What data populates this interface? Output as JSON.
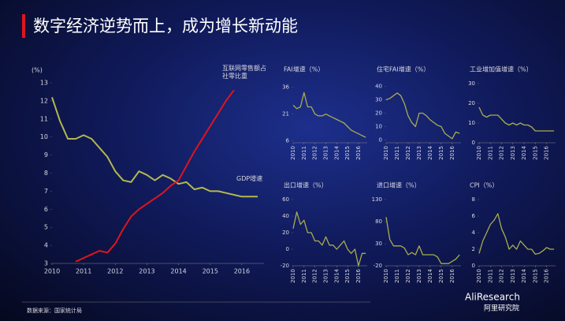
{
  "title": "数字经济逆势而上，成为增长新动能",
  "source": "数据来源：国家统计局",
  "logo": {
    "brand": "AliResearch",
    "sub": "阿里研究院"
  },
  "chart_data": [
    {
      "type": "line",
      "y_label": "(%)",
      "xlim": [
        2010,
        2016.7
      ],
      "ylim": [
        3,
        13
      ],
      "xticks": [
        2010,
        2011,
        2012,
        2013,
        2014,
        2015,
        2016
      ],
      "yticks": [
        3,
        4,
        5,
        6,
        7,
        8,
        9,
        10,
        11,
        12,
        13
      ],
      "series": [
        {
          "name": "GDP增速",
          "color": "#b3b84e",
          "x": [
            2010,
            2010.25,
            2010.5,
            2010.75,
            2011,
            2011.25,
            2011.5,
            2011.75,
            2012,
            2012.25,
            2012.5,
            2012.75,
            2013,
            2013.25,
            2013.5,
            2013.75,
            2014,
            2014.25,
            2014.5,
            2014.75,
            2015,
            2015.25,
            2015.5,
            2015.75,
            2016,
            2016.25,
            2016.5
          ],
          "values": [
            12.2,
            10.9,
            9.9,
            9.9,
            10.1,
            9.9,
            9.4,
            8.9,
            8.1,
            7.6,
            7.5,
            8.1,
            7.9,
            7.6,
            7.9,
            7.7,
            7.4,
            7.5,
            7.1,
            7.2,
            7.0,
            7.0,
            6.9,
            6.8,
            6.7,
            6.7,
            6.7
          ]
        },
        {
          "name": "互联网零售额占社零比重",
          "color": "#e0141c",
          "x": [
            2010.75,
            2011,
            2011.25,
            2011.5,
            2011.75,
            2012,
            2012.25,
            2012.5,
            2012.75,
            2013,
            2013.25,
            2013.5,
            2013.75,
            2014,
            2014.25,
            2014.5,
            2014.75,
            2015,
            2015.25,
            2015.5,
            2015.75
          ],
          "values": [
            3.1,
            3.3,
            3.5,
            3.7,
            3.6,
            4.1,
            4.9,
            5.6,
            6.0,
            6.3,
            6.6,
            6.9,
            7.3,
            7.6,
            8.4,
            9.2,
            9.9,
            10.6,
            11.3,
            12.0,
            12.6
          ]
        }
      ]
    },
    {
      "type": "line",
      "title": "FAI增速（%）",
      "xlim": [
        2010,
        2016.8
      ],
      "ylim": [
        5,
        38
      ],
      "xticks": [
        2010,
        2011,
        2012,
        2013,
        2014,
        2015,
        2016
      ],
      "yticks": [
        6,
        21,
        36
      ],
      "x": [
        2010,
        2010.33,
        2010.67,
        2011,
        2011.33,
        2011.67,
        2012,
        2012.33,
        2012.67,
        2013,
        2013.33,
        2013.67,
        2014,
        2014.33,
        2014.67,
        2015,
        2015.33,
        2015.67,
        2016,
        2016.33,
        2016.67
      ],
      "series": [
        {
          "color": "#a8ad4e",
          "values": [
            26,
            24,
            25,
            33,
            25,
            25,
            21,
            20,
            20,
            21,
            20,
            19,
            18,
            17,
            16,
            14,
            12,
            11,
            10,
            9,
            8
          ]
        }
      ]
    },
    {
      "type": "line",
      "title": "住宅FAI增速（%）",
      "xlim": [
        2010,
        2016.8
      ],
      "ylim": [
        -2,
        42
      ],
      "xticks": [
        2010,
        2011,
        2012,
        2013,
        2014,
        2015,
        2016
      ],
      "yticks": [
        0,
        10,
        20,
        30,
        40
      ],
      "x": [
        2010,
        2010.33,
        2010.67,
        2011,
        2011.33,
        2011.67,
        2012,
        2012.33,
        2012.67,
        2013,
        2013.33,
        2013.67,
        2014,
        2014.33,
        2014.67,
        2015,
        2015.33,
        2015.67,
        2016,
        2016.33,
        2016.67
      ],
      "series": [
        {
          "color": "#a8ad4e",
          "values": [
            30,
            31,
            33,
            35,
            33,
            27,
            18,
            13,
            10,
            20,
            20,
            18,
            15,
            13,
            11,
            10,
            5,
            3,
            1,
            6,
            5
          ]
        }
      ]
    },
    {
      "type": "line",
      "title": "工业增加值增速（%）",
      "xlim": [
        2010,
        2016.8
      ],
      "ylim": [
        0,
        30
      ],
      "xticks": [
        2010,
        2011,
        2012,
        2013,
        2014,
        2015,
        2016
      ],
      "yticks": [
        0,
        10,
        20,
        30
      ],
      "x": [
        2010,
        2010.33,
        2010.67,
        2011,
        2011.33,
        2011.67,
        2012,
        2012.33,
        2012.67,
        2013,
        2013.33,
        2013.67,
        2014,
        2014.33,
        2014.67,
        2015,
        2015.33,
        2015.67,
        2016,
        2016.33,
        2016.67
      ],
      "series": [
        {
          "color": "#a8ad4e",
          "values": [
            18,
            14,
            13,
            14,
            14,
            14,
            12,
            10,
            9,
            10,
            9,
            10,
            9,
            9,
            8,
            6,
            6,
            6,
            6,
            6,
            6
          ]
        }
      ]
    },
    {
      "type": "line",
      "title": "出口增速（%）",
      "xlim": [
        2010,
        2016.8
      ],
      "ylim": [
        -20,
        60
      ],
      "xticks": [
        2010,
        2011,
        2012,
        2013,
        2014,
        2015,
        2016
      ],
      "yticks": [
        -20,
        0,
        20,
        40,
        60
      ],
      "x": [
        2010,
        2010.33,
        2010.67,
        2011,
        2011.33,
        2011.67,
        2012,
        2012.33,
        2012.67,
        2013,
        2013.33,
        2013.67,
        2014,
        2014.33,
        2014.67,
        2015,
        2015.33,
        2015.67,
        2016,
        2016.33,
        2016.67
      ],
      "series": [
        {
          "color": "#a8ad4e",
          "values": [
            25,
            45,
            30,
            35,
            20,
            20,
            10,
            10,
            5,
            15,
            5,
            5,
            0,
            5,
            10,
            0,
            -5,
            0,
            -20,
            -5,
            -5
          ]
        }
      ]
    },
    {
      "type": "line",
      "title": "进口增速（%）",
      "xlim": [
        2010,
        2016.8
      ],
      "ylim": [
        -20,
        130
      ],
      "xticks": [
        2010,
        2011,
        2012,
        2013,
        2014,
        2015,
        2016
      ],
      "yticks": [
        -20,
        30,
        80,
        130
      ],
      "x": [
        2010,
        2010.33,
        2010.67,
        2011,
        2011.33,
        2011.67,
        2012,
        2012.33,
        2012.67,
        2013,
        2013.33,
        2013.67,
        2014,
        2014.33,
        2014.67,
        2015,
        2015.33,
        2015.67,
        2016,
        2016.33,
        2016.67
      ],
      "series": [
        {
          "color": "#a8ad4e",
          "values": [
            90,
            40,
            25,
            25,
            25,
            20,
            5,
            10,
            5,
            25,
            5,
            5,
            5,
            5,
            0,
            -15,
            -15,
            -15,
            -10,
            -5,
            5
          ]
        }
      ]
    },
    {
      "type": "line",
      "title": "CPI（%）",
      "xlim": [
        2010,
        2016.8
      ],
      "ylim": [
        0,
        8
      ],
      "xticks": [
        2010,
        2011,
        2012,
        2013,
        2014,
        2015,
        2016
      ],
      "yticks": [
        0,
        2,
        4,
        6,
        8
      ],
      "x": [
        2010,
        2010.33,
        2010.67,
        2011,
        2011.33,
        2011.67,
        2012,
        2012.33,
        2012.67,
        2013,
        2013.33,
        2013.67,
        2014,
        2014.33,
        2014.67,
        2015,
        2015.33,
        2015.67,
        2016,
        2016.33,
        2016.67
      ],
      "series": [
        {
          "color": "#a8ad4e",
          "values": [
            1.5,
            3,
            4,
            5,
            5.5,
            6.3,
            4.5,
            3.5,
            2,
            2.5,
            2,
            3,
            2.5,
            2,
            2,
            1.4,
            1.5,
            1.8,
            2.2,
            2,
            2
          ]
        }
      ]
    }
  ]
}
